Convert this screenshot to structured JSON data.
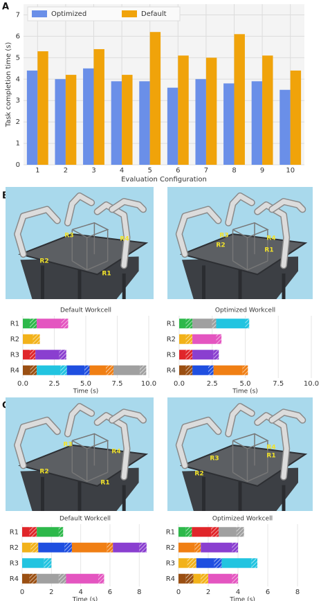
{
  "panels": [
    "A",
    "B",
    "C"
  ],
  "images": [
    {
      "labels": [
        "R3",
        "R4",
        "R2",
        "R1"
      ]
    },
    {
      "labels": [
        "R3",
        "R4",
        "R2",
        "R1"
      ]
    },
    {
      "labels": [
        "R3",
        "R4",
        "R2",
        "R1"
      ]
    },
    {
      "labels": [
        "R4",
        "R1",
        "R3",
        "R2"
      ]
    }
  ],
  "chart_data": [
    {
      "type": "bar",
      "xlabel": "Evaluation Configuration",
      "ylabel": "Task completion time (s)",
      "categories": [
        "1",
        "2",
        "3",
        "4",
        "5",
        "6",
        "7",
        "8",
        "9",
        "10"
      ],
      "series": [
        {
          "name": "Optimized",
          "color": "#6a8fe8",
          "values": [
            4.4,
            4.0,
            4.5,
            3.9,
            3.9,
            3.6,
            4.0,
            3.8,
            3.9,
            3.5
          ]
        },
        {
          "name": "Default",
          "color": "#f0a30a",
          "values": [
            5.3,
            4.2,
            5.4,
            4.2,
            6.2,
            5.1,
            5.0,
            6.1,
            5.1,
            4.4
          ]
        }
      ],
      "ylim": [
        0,
        7.5
      ],
      "yticks": [
        0,
        1,
        2,
        3,
        4,
        5,
        6,
        7
      ],
      "grid": true,
      "legend": "upper left"
    },
    {
      "type": "gantt",
      "title": "Default Workcell",
      "xlabel": "Time (s)",
      "xlim": [
        0,
        10
      ],
      "xticks": [
        {
          "value": 0,
          "label": "0.0"
        },
        2.5,
        {
          "value": 5,
          "label": "5.0"
        },
        7.5,
        {
          "value": 10,
          "label": "10.0"
        }
      ],
      "rows": [
        {
          "name": "R1",
          "segments": [
            {
              "value": 0.55,
              "color": "#2db84a",
              "hatch": false
            },
            {
              "value": 0.55,
              "color": "#2db84a",
              "hatch": true
            },
            {
              "value": 1.95,
              "color": "#e455c0",
              "hatch": false
            },
            {
              "value": 0.55,
              "color": "#e455c0",
              "hatch": true
            }
          ]
        },
        {
          "name": "R2",
          "segments": [
            {
              "value": 0.8,
              "color": "#f2b21a",
              "hatch": false
            },
            {
              "value": 0.55,
              "color": "#f2b21a",
              "hatch": true
            }
          ]
        },
        {
          "name": "R3",
          "segments": [
            {
              "value": 0.55,
              "color": "#e0262a",
              "hatch": false
            },
            {
              "value": 0.45,
              "color": "#e0262a",
              "hatch": true
            },
            {
              "value": 1.9,
              "color": "#8a3fd0",
              "hatch": false
            },
            {
              "value": 0.55,
              "color": "#8a3fd0",
              "hatch": true
            }
          ]
        },
        {
          "name": "R4",
          "segments": [
            {
              "value": 0.6,
              "color": "#9a4f12",
              "hatch": false
            },
            {
              "value": 0.5,
              "color": "#9a4f12",
              "hatch": true
            },
            {
              "value": 1.9,
              "color": "#22c4e0",
              "hatch": false
            },
            {
              "value": 0.5,
              "color": "#22c4e0",
              "hatch": true
            },
            {
              "value": 1.4,
              "color": "#1f4fe0",
              "hatch": false
            },
            {
              "value": 0.4,
              "color": "#1f4fe0",
              "hatch": true
            },
            {
              "value": 1.3,
              "color": "#f07f14",
              "hatch": false
            },
            {
              "value": 0.6,
              "color": "#f07f14",
              "hatch": true
            },
            {
              "value": 2.1,
              "color": "#a0a0a0",
              "hatch": false
            },
            {
              "value": 0.5,
              "color": "#a0a0a0",
              "hatch": true
            }
          ]
        }
      ]
    },
    {
      "type": "gantt",
      "title": "Optimized Workcell",
      "xlabel": "Time (s)",
      "xlim": [
        0,
        10
      ],
      "xticks": [
        {
          "value": 0,
          "label": "0.0"
        },
        2.5,
        {
          "value": 5,
          "label": "5.0"
        },
        7.5,
        {
          "value": 10,
          "label": "10.0"
        }
      ],
      "rows": [
        {
          "name": "R1",
          "segments": [
            {
              "value": 0.5,
              "color": "#2db84a",
              "hatch": false
            },
            {
              "value": 0.5,
              "color": "#2db84a",
              "hatch": true
            },
            {
              "value": 1.5,
              "color": "#a0a0a0",
              "hatch": false
            },
            {
              "value": 0.3,
              "color": "#a0a0a0",
              "hatch": true
            },
            {
              "value": 2.2,
              "color": "#22c4e0",
              "hatch": false
            },
            {
              "value": 0.3,
              "color": "#22c4e0",
              "hatch": true
            }
          ]
        },
        {
          "name": "R2",
          "segments": [
            {
              "value": 0.5,
              "color": "#f2b21a",
              "hatch": false
            },
            {
              "value": 0.5,
              "color": "#f2b21a",
              "hatch": true
            },
            {
              "value": 1.8,
              "color": "#e455c0",
              "hatch": false
            },
            {
              "value": 0.4,
              "color": "#e455c0",
              "hatch": true
            }
          ]
        },
        {
          "name": "R3",
          "segments": [
            {
              "value": 0.5,
              "color": "#e0262a",
              "hatch": false
            },
            {
              "value": 0.5,
              "color": "#e0262a",
              "hatch": true
            },
            {
              "value": 1.6,
              "color": "#8a3fd0",
              "hatch": false
            },
            {
              "value": 0.4,
              "color": "#8a3fd0",
              "hatch": true
            }
          ]
        },
        {
          "name": "R4",
          "segments": [
            {
              "value": 0.5,
              "color": "#9a4f12",
              "hatch": false
            },
            {
              "value": 0.5,
              "color": "#9a4f12",
              "hatch": true
            },
            {
              "value": 1.2,
              "color": "#1f4fe0",
              "hatch": false
            },
            {
              "value": 0.4,
              "color": "#1f4fe0",
              "hatch": true
            },
            {
              "value": 2.2,
              "color": "#f07f14",
              "hatch": false
            },
            {
              "value": 0.4,
              "color": "#f07f14",
              "hatch": true
            }
          ]
        }
      ]
    },
    {
      "type": "gantt",
      "title": "Default Workcell",
      "xlabel": "Time (s)",
      "xlim": [
        0,
        8.6
      ],
      "xticks": [
        0,
        2,
        4,
        6,
        8
      ],
      "rows": [
        {
          "name": "R1",
          "segments": [
            {
              "value": 0.5,
              "color": "#e0262a",
              "hatch": false
            },
            {
              "value": 0.5,
              "color": "#e0262a",
              "hatch": true
            },
            {
              "value": 1.5,
              "color": "#2db84a",
              "hatch": false
            },
            {
              "value": 0.3,
              "color": "#2db84a",
              "hatch": true
            }
          ]
        },
        {
          "name": "R2",
          "segments": [
            {
              "value": 0.6,
              "color": "#f2b21a",
              "hatch": false
            },
            {
              "value": 0.5,
              "color": "#f2b21a",
              "hatch": true
            },
            {
              "value": 1.8,
              "color": "#1f4fe0",
              "hatch": false
            },
            {
              "value": 0.5,
              "color": "#1f4fe0",
              "hatch": true
            },
            {
              "value": 2.4,
              "color": "#f07f14",
              "hatch": false
            },
            {
              "value": 0.4,
              "color": "#f07f14",
              "hatch": true
            },
            {
              "value": 1.8,
              "color": "#8a3fd0",
              "hatch": false
            },
            {
              "value": 0.5,
              "color": "#8a3fd0",
              "hatch": true
            }
          ]
        },
        {
          "name": "R3",
          "segments": [
            {
              "value": 1.5,
              "color": "#22c4e0",
              "hatch": false
            },
            {
              "value": 0.5,
              "color": "#22c4e0",
              "hatch": true
            }
          ]
        },
        {
          "name": "R4",
          "segments": [
            {
              "value": 0.5,
              "color": "#9a4f12",
              "hatch": false
            },
            {
              "value": 0.5,
              "color": "#9a4f12",
              "hatch": true
            },
            {
              "value": 1.5,
              "color": "#a0a0a0",
              "hatch": false
            },
            {
              "value": 0.5,
              "color": "#a0a0a0",
              "hatch": true
            },
            {
              "value": 2.2,
              "color": "#e455c0",
              "hatch": false
            },
            {
              "value": 0.4,
              "color": "#e455c0",
              "hatch": true
            }
          ]
        }
      ]
    },
    {
      "type": "gantt",
      "title": "Optimized Workcell",
      "xlabel": "Time (s)",
      "xlim": [
        0,
        8.6
      ],
      "xticks": [
        0,
        2,
        4,
        6,
        8
      ],
      "rows": [
        {
          "name": "R1",
          "segments": [
            {
              "value": 0.5,
              "color": "#2db84a",
              "hatch": false
            },
            {
              "value": 0.4,
              "color": "#2db84a",
              "hatch": true
            },
            {
              "value": 1.3,
              "color": "#e0262a",
              "hatch": false
            },
            {
              "value": 0.5,
              "color": "#e0262a",
              "hatch": true
            },
            {
              "value": 1.2,
              "color": "#a0a0a0",
              "hatch": false
            },
            {
              "value": 0.5,
              "color": "#a0a0a0",
              "hatch": true
            }
          ]
        },
        {
          "name": "R2",
          "segments": [
            {
              "value": 1.1,
              "color": "#f07f14",
              "hatch": false
            },
            {
              "value": 0.4,
              "color": "#f07f14",
              "hatch": true
            },
            {
              "value": 2.1,
              "color": "#8a3fd0",
              "hatch": false
            },
            {
              "value": 0.4,
              "color": "#8a3fd0",
              "hatch": true
            }
          ]
        },
        {
          "name": "R3",
          "segments": [
            {
              "value": 0.6,
              "color": "#f2b21a",
              "hatch": false
            },
            {
              "value": 0.6,
              "color": "#f2b21a",
              "hatch": true
            },
            {
              "value": 1.2,
              "color": "#1f4fe0",
              "hatch": false
            },
            {
              "value": 0.5,
              "color": "#1f4fe0",
              "hatch": true
            },
            {
              "value": 2.0,
              "color": "#22c4e0",
              "hatch": false
            },
            {
              "value": 0.4,
              "color": "#22c4e0",
              "hatch": true
            }
          ]
        },
        {
          "name": "R4",
          "segments": [
            {
              "value": 0.5,
              "color": "#9a4f12",
              "hatch": false
            },
            {
              "value": 0.5,
              "color": "#9a4f12",
              "hatch": true
            },
            {
              "value": 0.5,
              "color": "#f2b21a",
              "hatch": false
            },
            {
              "value": 0.5,
              "color": "#f2b21a",
              "hatch": true
            },
            {
              "value": 1.6,
              "color": "#e455c0",
              "hatch": false
            },
            {
              "value": 0.4,
              "color": "#e455c0",
              "hatch": true
            }
          ]
        }
      ]
    }
  ]
}
